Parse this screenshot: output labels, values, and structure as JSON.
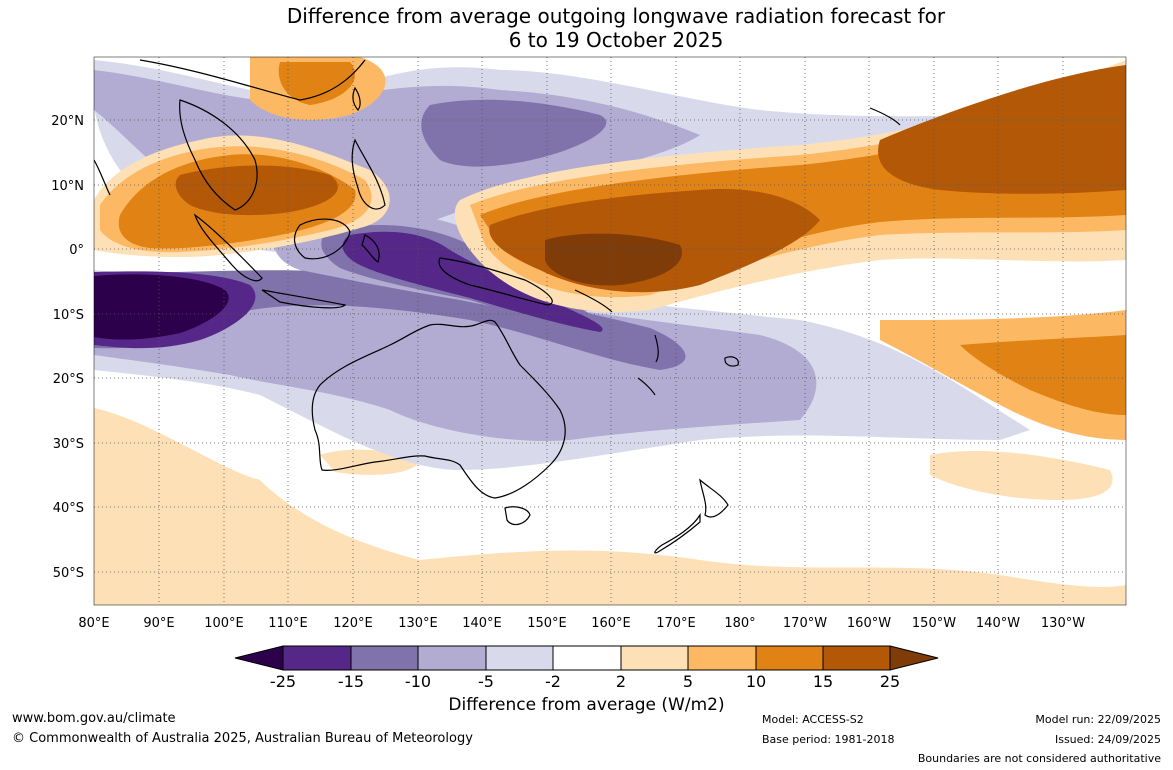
{
  "title": {
    "line1": "Difference from average outgoing longwave radiation forecast for",
    "line2": "6 to 19 October 2025"
  },
  "axes": {
    "lon_labels": [
      "80°E",
      "90°E",
      "100°E",
      "110°E",
      "120°E",
      "130°E",
      "140°E",
      "150°E",
      "160°E",
      "170°E",
      "180°",
      "170°W",
      "160°W",
      "150°W",
      "140°W",
      "130°W"
    ],
    "lat_labels": [
      "20°N",
      "10°N",
      "0°",
      "10°S",
      "20°S",
      "30°S",
      "40°S",
      "50°S"
    ]
  },
  "colorbar": {
    "title": "Difference from average (W/m2)",
    "tick_labels": [
      "-25",
      "-15",
      "-10",
      "-5",
      "-2",
      "2",
      "5",
      "10",
      "15",
      "25"
    ],
    "colors": {
      "below_min": "#2d004b",
      "c1": "#542788",
      "c2": "#8073ac",
      "c3": "#b2abd2",
      "c4": "#d8daeb",
      "c5": "#ffffff",
      "c6": "#fee0b6",
      "c7": "#fdb863",
      "c8": "#e08214",
      "c9": "#b35806",
      "above_max": "#7f3b08"
    }
  },
  "footer": {
    "website": "www.bom.gov.au/climate",
    "copyright": "© Commonwealth of Australia 2025, Australian Bureau of Meteorology",
    "model": "Model: ACCESS-S2",
    "base_period": "Base period: 1981-2018",
    "model_run": "Model run: 22/09/2025",
    "issued": "Issued: 24/09/2025",
    "disclaimer": "Boundaries are not considered authoritative"
  }
}
